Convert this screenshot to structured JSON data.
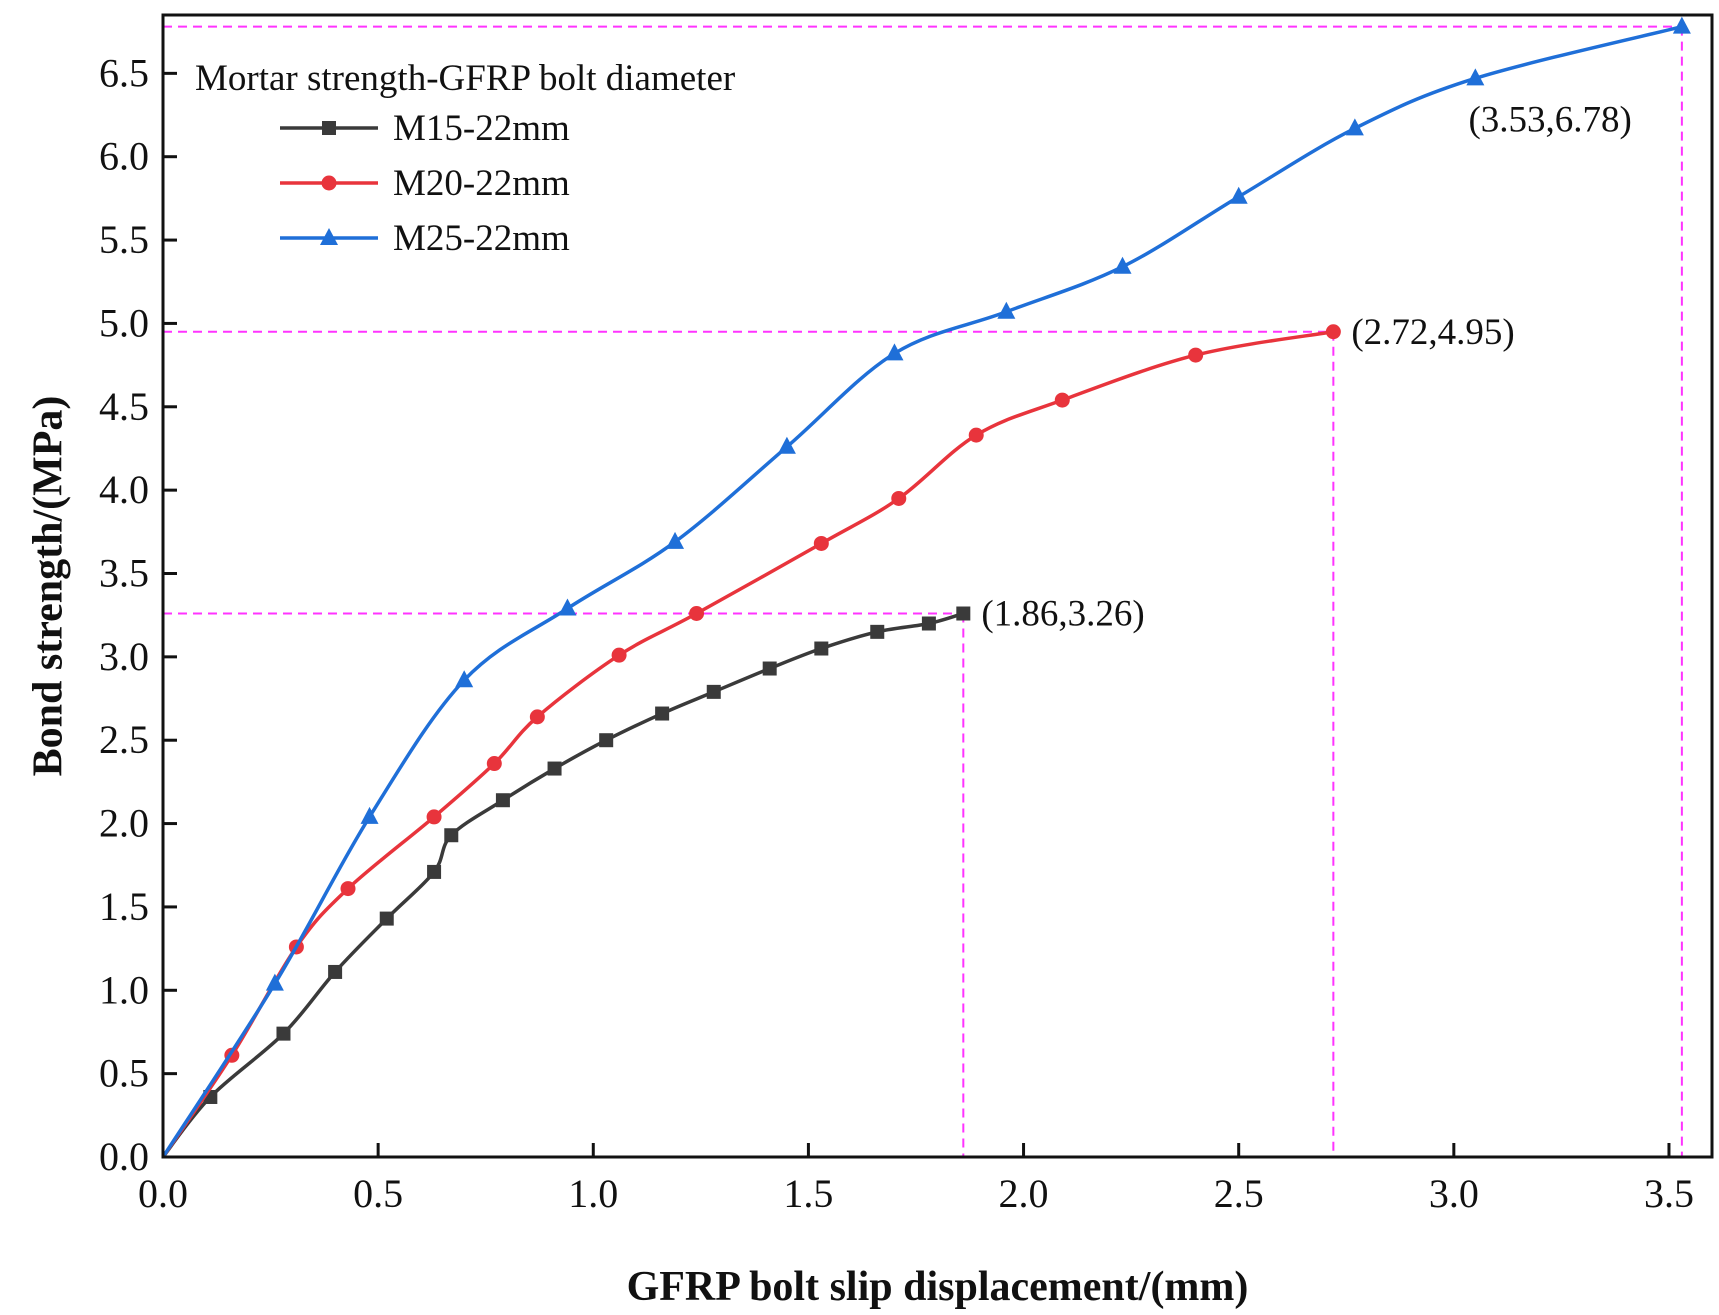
{
  "chart_data": {
    "type": "line",
    "xlabel": "GFRP bolt slip displacement/(mm)",
    "ylabel": "Bond strength/(MPa)",
    "xlim": [
      0,
      3.6
    ],
    "ylim": [
      0,
      6.85
    ],
    "xticks": [
      "0.0",
      "0.5",
      "1.0",
      "1.5",
      "2.0",
      "2.5",
      "3.0",
      "3.5"
    ],
    "yticks": [
      "0.0",
      "0.5",
      "1.0",
      "1.5",
      "2.0",
      "2.5",
      "3.0",
      "3.5",
      "4.0",
      "4.5",
      "5.0",
      "5.5",
      "6.0",
      "6.5"
    ],
    "legend_title": "Mortar strength-GFRP bolt diameter",
    "legend_position": "top-left",
    "series": [
      {
        "name": "M15-22mm",
        "color": "#3a3a3a",
        "marker": "square",
        "x": [
          0,
          0.11,
          0.28,
          0.4,
          0.52,
          0.63,
          0.67,
          0.79,
          0.91,
          1.03,
          1.16,
          1.28,
          1.41,
          1.53,
          1.66,
          1.78,
          1.86
        ],
        "y": [
          0,
          0.36,
          0.74,
          1.11,
          1.43,
          1.71,
          1.93,
          2.14,
          2.33,
          2.5,
          2.66,
          2.79,
          2.93,
          3.05,
          3.15,
          3.2,
          3.26
        ]
      },
      {
        "name": "M20-22mm",
        "color": "#e8343c",
        "marker": "circle",
        "x": [
          0,
          0.16,
          0.31,
          0.43,
          0.63,
          0.77,
          0.87,
          1.06,
          1.24,
          1.53,
          1.71,
          1.89,
          2.09,
          2.4,
          2.72
        ],
        "y": [
          0,
          0.61,
          1.26,
          1.61,
          2.04,
          2.36,
          2.64,
          3.01,
          3.26,
          3.68,
          3.95,
          4.33,
          4.54,
          4.81,
          4.95
        ]
      },
      {
        "name": "M25-22mm",
        "color": "#1f6fd8",
        "marker": "triangle",
        "x": [
          0,
          0.26,
          0.48,
          0.7,
          0.94,
          1.19,
          1.45,
          1.7,
          1.96,
          2.23,
          2.5,
          2.77,
          3.05,
          3.53
        ],
        "y": [
          0,
          1.04,
          2.04,
          2.86,
          3.29,
          3.69,
          4.26,
          4.82,
          5.07,
          5.34,
          5.76,
          6.17,
          6.47,
          6.78
        ]
      }
    ],
    "reference_color": "#ff33ff",
    "annotations": [
      {
        "text": "(1.86,3.26)",
        "x": 1.86,
        "y": 3.26,
        "anchor": "right-of-point"
      },
      {
        "text": "(2.72,4.95)",
        "x": 2.72,
        "y": 4.95,
        "anchor": "right-of-point"
      },
      {
        "text": "(3.53,6.78)",
        "x": 3.53,
        "y": 6.78,
        "anchor": "below-left"
      }
    ]
  }
}
